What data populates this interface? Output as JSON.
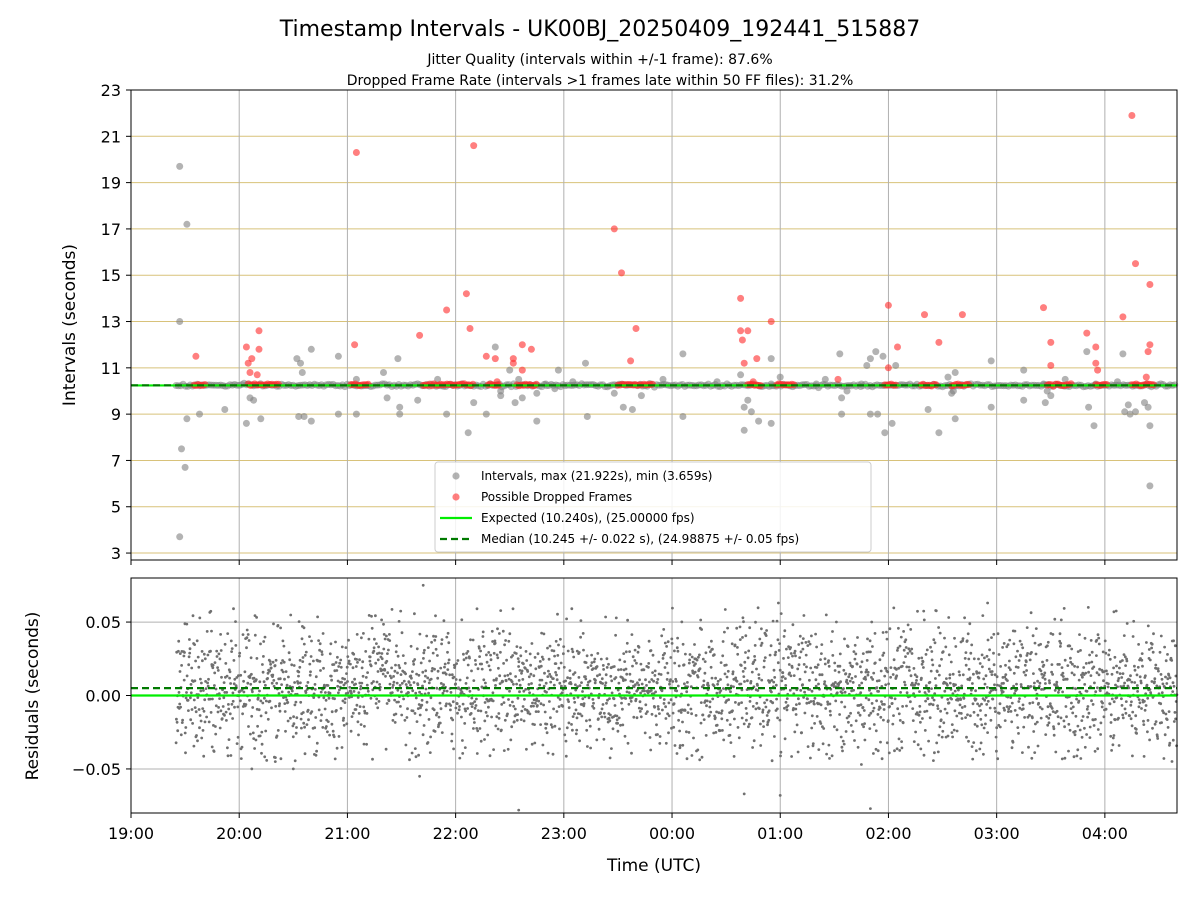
{
  "title": "Timestamp Intervals - UK00BJ_20250409_192441_515887",
  "subtitle_jitter": "Jitter Quality (intervals within +/-1 frame): 87.6%",
  "subtitle_dropped": "Dropped Frame Rate (intervals >1 frames late within 50 FF files): 31.2%",
  "colors": {
    "grid_major": "#b0b0b0",
    "grid_band": "#d8c27a",
    "interval_points": "#808080",
    "dropped_points": "#ff2a2a",
    "expected_line": "#00ee00",
    "median_line": "#007a00",
    "residual_points": "#707070"
  },
  "chart_data": [
    {
      "type": "scatter",
      "panel": "intervals",
      "ylabel": "Intervals (seconds)",
      "xlabel": "",
      "xlim": [
        "19:00",
        "04:40"
      ],
      "ylim": [
        2.7,
        23
      ],
      "yticks": [
        "3",
        "5",
        "7",
        "9",
        "11",
        "13",
        "15",
        "17",
        "19",
        "21",
        "23"
      ],
      "ytick_values": [
        3,
        5,
        7,
        9,
        11,
        13,
        15,
        17,
        19,
        21,
        23
      ],
      "grid": "on",
      "legend_position": "bottom-center",
      "legend": [
        {
          "key": "intervals",
          "label": "Intervals, max (21.922s), min (3.659s)"
        },
        {
          "key": "dropped",
          "label": "Possible Dropped Frames"
        },
        {
          "key": "expected",
          "label": "Expected (10.240s), (25.00000 fps)"
        },
        {
          "key": "median",
          "label": "Median (10.245 +/- 0.022 s), (24.98875 +/- 0.05 fps)"
        }
      ],
      "expected_value": 10.24,
      "median_value": 10.245,
      "baseline_range": [
        "19:25",
        "04:40"
      ],
      "dropped_clusters": [
        [
          "19:35",
          "19:42"
        ],
        [
          "20:05",
          "20:22"
        ],
        [
          "21:02",
          "21:12"
        ],
        [
          "21:42",
          "22:10"
        ],
        [
          "22:18",
          "22:25"
        ],
        [
          "22:34",
          "22:45"
        ],
        [
          "23:30",
          "23:50"
        ],
        [
          "00:42",
          "00:50"
        ],
        [
          "00:58",
          "01:08"
        ],
        [
          "01:58",
          "02:05"
        ],
        [
          "02:18",
          "02:27"
        ],
        [
          "02:35",
          "02:45"
        ],
        [
          "03:28",
          "03:42"
        ],
        [
          "03:55",
          "04:02"
        ],
        [
          "04:15",
          "04:28"
        ]
      ],
      "series": [
        {
          "key": "intervals",
          "points": [
            [
              "19:27",
              19.7
            ],
            [
              "19:27",
              13.0
            ],
            [
              "19:27",
              3.7
            ],
            [
              "19:28",
              7.5
            ],
            [
              "19:30",
              6.7
            ],
            [
              "19:31",
              17.2
            ],
            [
              "19:31",
              8.8
            ],
            [
              "19:38",
              9.0
            ],
            [
              "19:52",
              9.2
            ],
            [
              "20:04",
              8.6
            ],
            [
              "20:06",
              9.7
            ],
            [
              "20:08",
              9.6
            ],
            [
              "20:12",
              8.8
            ],
            [
              "20:32",
              11.4
            ],
            [
              "20:34",
              11.2
            ],
            [
              "20:35",
              10.8
            ],
            [
              "20:33",
              8.9
            ],
            [
              "20:36",
              8.9
            ],
            [
              "20:40",
              11.8
            ],
            [
              "20:40",
              8.7
            ],
            [
              "20:55",
              11.5
            ],
            [
              "20:55",
              9.0
            ],
            [
              "21:05",
              10.5
            ],
            [
              "21:05",
              9.0
            ],
            [
              "21:20",
              10.8
            ],
            [
              "21:22",
              9.7
            ],
            [
              "21:28",
              11.4
            ],
            [
              "21:29",
              9.3
            ],
            [
              "21:29",
              9.0
            ],
            [
              "21:39",
              9.6
            ],
            [
              "21:50",
              10.5
            ],
            [
              "21:55",
              9.0
            ],
            [
              "22:07",
              8.2
            ],
            [
              "22:10",
              9.5
            ],
            [
              "22:17",
              9.0
            ],
            [
              "22:22",
              11.9
            ],
            [
              "22:25",
              10.0
            ],
            [
              "22:25",
              9.8
            ],
            [
              "22:30",
              10.9
            ],
            [
              "22:33",
              9.5
            ],
            [
              "22:35",
              10.5
            ],
            [
              "22:37",
              9.7
            ],
            [
              "22:45",
              8.7
            ],
            [
              "22:45",
              9.9
            ],
            [
              "22:50",
              10.3
            ],
            [
              "22:55",
              10.1
            ],
            [
              "22:57",
              10.9
            ],
            [
              "23:05",
              10.4
            ],
            [
              "23:12",
              11.2
            ],
            [
              "23:13",
              8.9
            ],
            [
              "23:28",
              9.9
            ],
            [
              "23:33",
              9.3
            ],
            [
              "23:38",
              9.2
            ],
            [
              "23:43",
              9.8
            ],
            [
              "23:55",
              10.5
            ],
            [
              "00:06",
              11.6
            ],
            [
              "00:06",
              8.9
            ],
            [
              "00:25",
              10.4
            ],
            [
              "00:38",
              10.7
            ],
            [
              "00:40",
              9.3
            ],
            [
              "00:40",
              8.3
            ],
            [
              "00:42",
              9.6
            ],
            [
              "00:44",
              9.1
            ],
            [
              "00:48",
              8.7
            ],
            [
              "00:55",
              10.3
            ],
            [
              "00:55",
              11.4
            ],
            [
              "00:55",
              8.6
            ],
            [
              "01:00",
              10.6
            ],
            [
              "01:20",
              10.3
            ],
            [
              "01:25",
              10.5
            ],
            [
              "01:33",
              11.6
            ],
            [
              "01:34",
              9.7
            ],
            [
              "01:34",
              9.0
            ],
            [
              "01:37",
              10.0
            ],
            [
              "01:45",
              10.3
            ],
            [
              "01:48",
              11.1
            ],
            [
              "01:50",
              9.0
            ],
            [
              "01:50",
              11.4
            ],
            [
              "01:53",
              11.7
            ],
            [
              "01:54",
              9.0
            ],
            [
              "01:57",
              11.5
            ],
            [
              "01:58",
              8.2
            ],
            [
              "02:02",
              8.6
            ],
            [
              "02:04",
              11.1
            ],
            [
              "02:22",
              9.2
            ],
            [
              "02:28",
              8.2
            ],
            [
              "02:33",
              10.6
            ],
            [
              "02:35",
              10.2
            ],
            [
              "02:35",
              9.9
            ],
            [
              "02:36",
              10.0
            ],
            [
              "02:37",
              10.8
            ],
            [
              "02:37",
              8.8
            ],
            [
              "02:57",
              11.3
            ],
            [
              "02:57",
              9.3
            ],
            [
              "03:15",
              10.9
            ],
            [
              "03:15",
              9.6
            ],
            [
              "03:26",
              10.3
            ],
            [
              "03:27",
              9.5
            ],
            [
              "03:28",
              10.0
            ],
            [
              "03:30",
              9.8
            ],
            [
              "03:38",
              10.5
            ],
            [
              "03:50",
              11.7
            ],
            [
              "03:51",
              9.3
            ],
            [
              "03:54",
              8.5
            ],
            [
              "03:55",
              10.3
            ],
            [
              "04:07",
              10.4
            ],
            [
              "04:10",
              11.6
            ],
            [
              "04:11",
              9.1
            ],
            [
              "04:13",
              9.4
            ],
            [
              "04:14",
              9.0
            ],
            [
              "04:17",
              9.1
            ],
            [
              "04:22",
              9.5
            ],
            [
              "04:24",
              9.3
            ],
            [
              "04:25",
              8.5
            ],
            [
              "04:25",
              5.9
            ]
          ]
        },
        {
          "key": "dropped",
          "points": [
            [
              "19:36",
              11.5
            ],
            [
              "20:04",
              11.9
            ],
            [
              "20:05",
              11.2
            ],
            [
              "20:06",
              10.8
            ],
            [
              "20:07",
              11.4
            ],
            [
              "20:10",
              10.7
            ],
            [
              "20:11",
              11.8
            ],
            [
              "20:11",
              12.6
            ],
            [
              "21:04",
              12.0
            ],
            [
              "21:05",
              20.3
            ],
            [
              "21:40",
              12.4
            ],
            [
              "21:55",
              13.5
            ],
            [
              "22:06",
              14.2
            ],
            [
              "22:08",
              12.7
            ],
            [
              "22:10",
              20.6
            ],
            [
              "22:17",
              11.5
            ],
            [
              "22:22",
              11.4
            ],
            [
              "22:23",
              10.4
            ],
            [
              "22:32",
              11.4
            ],
            [
              "22:32",
              11.2
            ],
            [
              "22:37",
              12.0
            ],
            [
              "22:37",
              10.9
            ],
            [
              "22:42",
              11.8
            ],
            [
              "23:28",
              17.0
            ],
            [
              "23:32",
              15.1
            ],
            [
              "23:37",
              11.3
            ],
            [
              "23:40",
              12.7
            ],
            [
              "00:38",
              14.0
            ],
            [
              "00:38",
              12.6
            ],
            [
              "00:39",
              12.2
            ],
            [
              "00:40",
              11.2
            ],
            [
              "00:42",
              12.6
            ],
            [
              "00:45",
              10.4
            ],
            [
              "00:47",
              11.4
            ],
            [
              "00:55",
              13.0
            ],
            [
              "01:32",
              10.5
            ],
            [
              "02:00",
              13.7
            ],
            [
              "02:00",
              11.0
            ],
            [
              "02:05",
              11.9
            ],
            [
              "02:20",
              13.3
            ],
            [
              "02:28",
              12.1
            ],
            [
              "02:41",
              13.3
            ],
            [
              "03:26",
              13.6
            ],
            [
              "03:30",
              12.1
            ],
            [
              "03:30",
              11.1
            ],
            [
              "03:50",
              12.5
            ],
            [
              "03:55",
              11.2
            ],
            [
              "03:55",
              11.9
            ],
            [
              "03:56",
              10.9
            ],
            [
              "04:10",
              13.2
            ],
            [
              "04:15",
              21.9
            ],
            [
              "04:17",
              15.5
            ],
            [
              "04:24",
              11.7
            ],
            [
              "04:25",
              14.6
            ],
            [
              "04:25",
              12.0
            ],
            [
              "04:23",
              10.6
            ]
          ]
        }
      ]
    },
    {
      "type": "scatter",
      "panel": "residuals",
      "ylabel": "Residuals (seconds)",
      "xlabel": "Time (UTC)",
      "xlim": [
        "19:00",
        "04:40"
      ],
      "ylim": [
        -0.08,
        0.08
      ],
      "yticks": [
        "0.05",
        "0.00",
        "−0.05"
      ],
      "ytick_values": [
        0.05,
        0.0,
        -0.05
      ],
      "xticks": [
        "19:00",
        "20:00",
        "21:00",
        "22:00",
        "23:00",
        "00:00",
        "01:00",
        "02:00",
        "03:00",
        "04:00"
      ],
      "grid": "on",
      "expected_value": 0.0,
      "median_value": 0.005,
      "residual_range": [
        "19:25",
        "04:40"
      ],
      "residual_std": 0.022,
      "outliers": [
        [
          "19:45",
          -0.035
        ],
        [
          "20:07",
          -0.05
        ],
        [
          "20:20",
          -0.045
        ],
        [
          "20:30",
          -0.05
        ],
        [
          "21:40",
          -0.055
        ],
        [
          "21:42",
          0.075
        ],
        [
          "22:35",
          -0.078
        ],
        [
          "00:40",
          -0.067
        ],
        [
          "00:59",
          0.063
        ],
        [
          "01:00",
          -0.068
        ],
        [
          "01:45",
          -0.047
        ],
        [
          "01:50",
          -0.077
        ],
        [
          "02:55",
          0.063
        ],
        [
          "03:45",
          -0.037
        ],
        [
          "04:05",
          0.057
        ]
      ]
    }
  ]
}
